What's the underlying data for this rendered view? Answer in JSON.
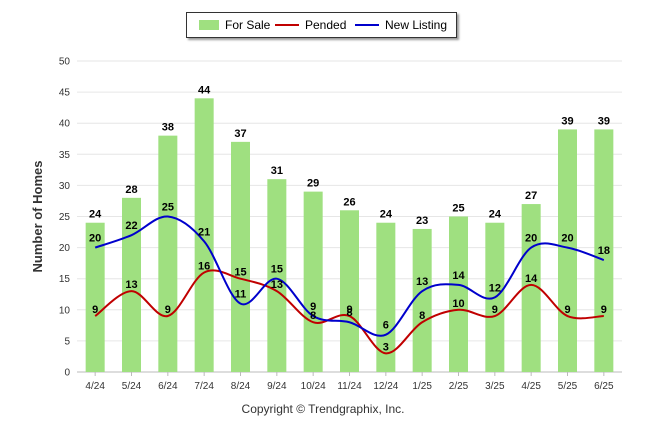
{
  "legend": {
    "for_sale": "For Sale",
    "pended": "Pended",
    "new_listing": "New Listing"
  },
  "footer": "Copyright © Trendgraphix, Inc.",
  "chart_data": {
    "type": "bar",
    "categories": [
      "4/24",
      "5/24",
      "6/24",
      "7/24",
      "8/24",
      "9/24",
      "10/24",
      "11/24",
      "12/24",
      "1/25",
      "2/25",
      "3/25",
      "4/25",
      "5/25",
      "6/25"
    ],
    "series": [
      {
        "name": "For Sale",
        "type": "bar",
        "color": "#9fe080",
        "values": [
          24,
          28,
          38,
          44,
          37,
          31,
          29,
          26,
          24,
          23,
          25,
          24,
          27,
          39,
          39
        ]
      },
      {
        "name": "Pended",
        "type": "line",
        "color": "#c00000",
        "values": [
          9,
          13,
          9,
          16,
          15,
          13,
          8,
          9,
          3,
          8,
          10,
          9,
          14,
          9,
          9
        ]
      },
      {
        "name": "New Listing",
        "type": "line",
        "color": "#0000cc",
        "values": [
          20,
          22,
          25,
          21,
          11,
          15,
          9,
          8,
          6,
          13,
          14,
          12,
          20,
          20,
          18
        ]
      }
    ],
    "ylabel": "Number of Homes",
    "ylim": [
      0,
      50
    ],
    "yticks": [
      0,
      5,
      10,
      15,
      20,
      25,
      30,
      35,
      40,
      45,
      50
    ],
    "grid": true,
    "legend_position": "top-center"
  }
}
